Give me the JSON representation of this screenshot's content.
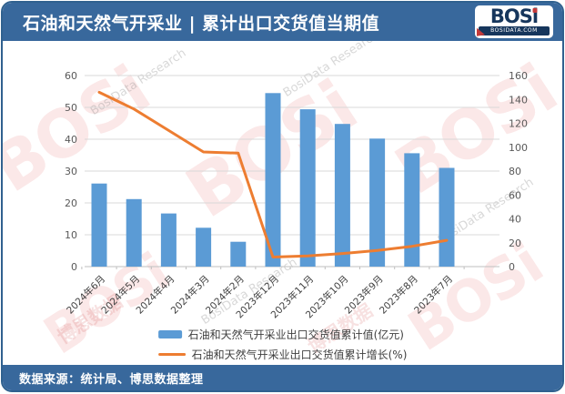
{
  "header": {
    "title": "石油和天然气开采业 | 累计出口交货值当期值",
    "logo": {
      "text_main": "BOS",
      "text_i": "i",
      "domain": "BOSIDATA.COM"
    }
  },
  "watermark": {
    "brand": "BOSi",
    "research": "BosiData Research",
    "cn": "博思数据"
  },
  "chart_data": {
    "type": "bar+line combo",
    "categories": [
      "2024年6月",
      "2024年5月",
      "2024年4月",
      "2024年3月",
      "2024年2月",
      "2023年12月",
      "2023年11月",
      "2023年10月",
      "2023年9月",
      "2023年8月",
      "2023年7月"
    ],
    "series": [
      {
        "name": "石油和天然气开采业出口交货值累计值(亿元)",
        "type": "bar",
        "axis": "left",
        "color": "#5B9BD5",
        "values": [
          26.1,
          21.2,
          16.7,
          12.2,
          7.8,
          54.5,
          49.4,
          44.8,
          40.2,
          35.6,
          31.0
        ]
      },
      {
        "name": "石油和天然气开采业出口交货值累计增长(%)",
        "type": "line",
        "axis": "right",
        "color": "#ED7D31",
        "values": [
          146,
          132,
          114,
          96,
          95,
          8,
          9,
          11,
          13.5,
          17,
          22
        ]
      }
    ],
    "left_axis": {
      "min": 0,
      "max": 60,
      "ticks": [
        0,
        10,
        20,
        30,
        40,
        50,
        60
      ]
    },
    "right_axis": {
      "min": 0,
      "max": 160,
      "ticks": [
        0,
        20,
        40,
        60,
        80,
        100,
        120,
        140,
        160
      ]
    },
    "grid": true,
    "legend_position": "bottom"
  },
  "footer": {
    "source": "数据来源：统计局、博思数据整理"
  }
}
